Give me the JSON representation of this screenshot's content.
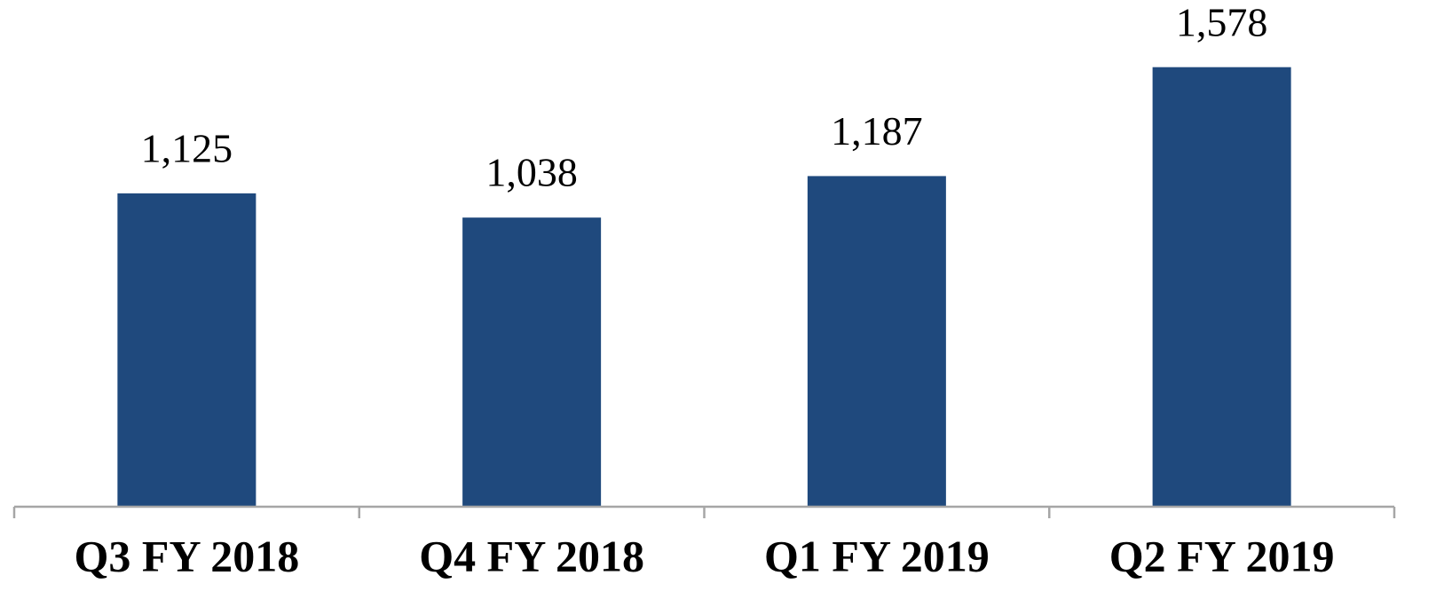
{
  "chart_data": {
    "type": "bar",
    "categories": [
      "Q3 FY 2018",
      "Q4 FY 2018",
      "Q1 FY 2019",
      "Q2 FY 2019"
    ],
    "values": [
      1125,
      1038,
      1187,
      1578
    ],
    "value_labels": [
      "1,125",
      "1,038",
      "1,187",
      "1,578"
    ],
    "color": "#1f497d",
    "ylim": [
      0,
      1800
    ]
  }
}
